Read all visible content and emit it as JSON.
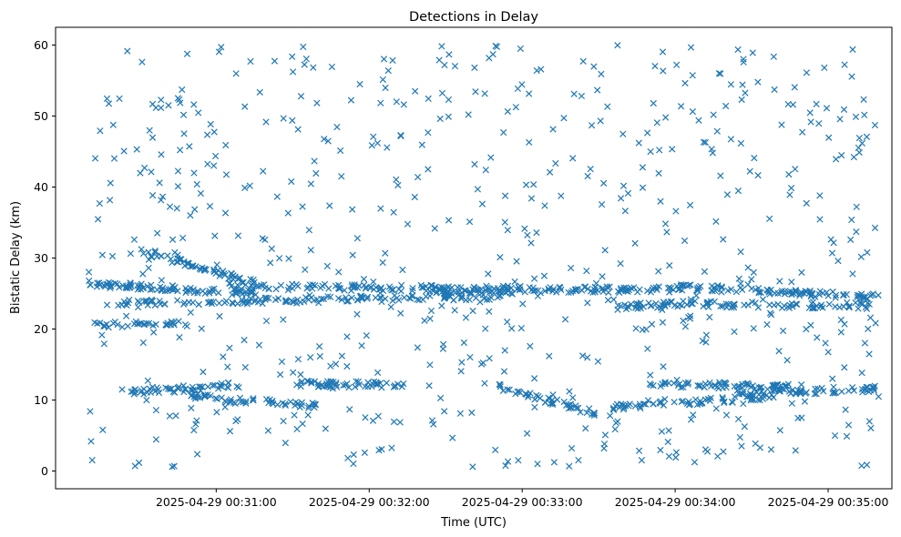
{
  "chart_data": {
    "type": "scatter",
    "title": "Detections in Delay",
    "xlabel": "Time (UTC)",
    "ylabel": "Bistatic Delay (km)",
    "marker": "x",
    "color": "#1f77b4",
    "grid": false,
    "legend": "none",
    "xlim": [
      "2025-04-29 00:29:57",
      "2025-04-29 00:35:25"
    ],
    "ylim": [
      -2.5,
      62.5
    ],
    "x_ticks": [
      "2025-04-29 00:31:00",
      "2025-04-29 00:32:00",
      "2025-04-29 00:33:00",
      "2025-04-29 00:34:00",
      "2025-04-29 00:35:00"
    ],
    "y_ticks": [
      0,
      10,
      20,
      30,
      40,
      50,
      60
    ],
    "tracks": [
      {
        "start": "2025-04-29 00:30:10",
        "end": "2025-04-29 00:31:15",
        "delay_start": 26.4,
        "delay_end": 25.0,
        "points": 90
      },
      {
        "start": "2025-04-29 00:30:15",
        "end": "2025-04-29 00:32:55",
        "delay_start": 23.6,
        "delay_end": 24.6,
        "points": 140
      },
      {
        "start": "2025-04-29 00:31:05",
        "end": "2025-04-29 00:33:00",
        "delay_start": 26.0,
        "delay_end": 25.6,
        "points": 110
      },
      {
        "start": "2025-04-29 00:30:30",
        "end": "2025-04-29 00:31:15",
        "delay_start": 31.0,
        "delay_end": 26.5,
        "points": 60
      },
      {
        "start": "2025-04-29 00:30:10",
        "end": "2025-04-29 00:30:50",
        "delay_start": 20.5,
        "delay_end": 20.8,
        "points": 35
      },
      {
        "start": "2025-04-29 00:30:25",
        "end": "2025-04-29 00:31:10",
        "delay_start": 11.0,
        "delay_end": 12.2,
        "points": 55
      },
      {
        "start": "2025-04-29 00:30:50",
        "end": "2025-04-29 00:31:40",
        "delay_start": 10.5,
        "delay_end": 9.2,
        "points": 55
      },
      {
        "start": "2025-04-29 00:31:30",
        "end": "2025-04-29 00:32:15",
        "delay_start": 12.3,
        "delay_end": 12.1,
        "points": 55
      },
      {
        "start": "2025-04-29 00:32:25",
        "end": "2025-04-29 00:34:00",
        "delay_start": 25.4,
        "delay_end": 25.6,
        "points": 110
      },
      {
        "start": "2025-04-29 00:32:45",
        "end": "2025-04-29 00:33:30",
        "delay_start": 12.5,
        "delay_end": 8.0,
        "points": 45
      },
      {
        "start": "2025-04-29 00:33:35",
        "end": "2025-04-29 00:34:10",
        "delay_start": 23.0,
        "delay_end": 23.8,
        "points": 40
      },
      {
        "start": "2025-04-29 00:33:50",
        "end": "2025-04-29 00:34:45",
        "delay_start": 12.3,
        "delay_end": 11.8,
        "points": 70
      },
      {
        "start": "2025-04-29 00:33:35",
        "end": "2025-04-29 00:34:40",
        "delay_start": 9.0,
        "delay_end": 10.5,
        "points": 60
      },
      {
        "start": "2025-04-29 00:34:00",
        "end": "2025-04-29 00:35:20",
        "delay_start": 26.0,
        "delay_end": 24.5,
        "points": 100
      },
      {
        "start": "2025-04-29 00:34:25",
        "end": "2025-04-29 00:35:20",
        "delay_start": 10.8,
        "delay_end": 11.6,
        "points": 60
      },
      {
        "start": "2025-04-29 00:34:10",
        "end": "2025-04-29 00:35:20",
        "delay_start": 23.5,
        "delay_end": 23.3,
        "points": 60
      }
    ],
    "clutter": {
      "start": "2025-04-29 00:30:10",
      "end": "2025-04-29 00:35:20",
      "delay_min": 0.5,
      "delay_max": 60,
      "points": 640
    }
  }
}
